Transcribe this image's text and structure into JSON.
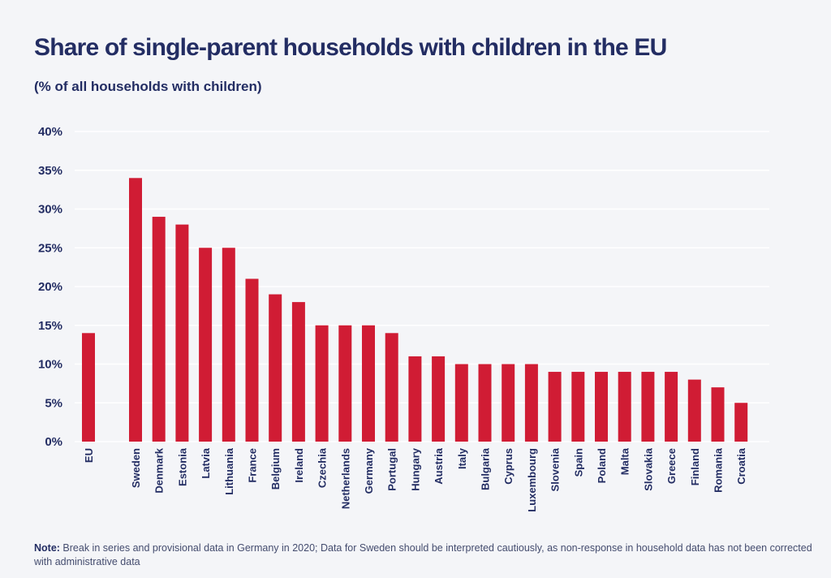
{
  "chart_data": {
    "type": "bar",
    "title": "Share of single-parent households with children in the EU",
    "subtitle": "(% of all households with children)",
    "xlabel": "",
    "ylabel": "",
    "ylim": [
      0,
      40
    ],
    "yticks": [
      "0%",
      "5%",
      "10%",
      "15%",
      "20%",
      "25%",
      "30%",
      "35%",
      "40%"
    ],
    "ytick_values": [
      0,
      5,
      10,
      15,
      20,
      25,
      30,
      35,
      40
    ],
    "grid": true,
    "categories": [
      "EU",
      "Sweden",
      "Denmark",
      "Estonia",
      "Latvia",
      "Lithuania",
      "France",
      "Belgium",
      "Ireland",
      "Czechia",
      "Netherlands",
      "Germany",
      "Portugal",
      "Hungary",
      "Austria",
      "Italy",
      "Bulgaria",
      "Cyprus",
      "Luxembourg",
      "Slovenia",
      "Spain",
      "Poland",
      "Malta",
      "Slovakia",
      "Greece",
      "Finland",
      "Romania",
      "Croatia"
    ],
    "values": [
      14,
      34,
      29,
      28,
      25,
      25,
      21,
      19,
      18,
      15,
      15,
      15,
      14,
      11,
      11,
      10,
      10,
      10,
      10,
      9,
      9,
      9,
      9,
      9,
      9,
      8,
      7,
      5
    ],
    "bar_color": "#d01c34"
  },
  "note": {
    "label": "Note:",
    "text": " Break in series and provisional data in Germany in 2020; Data for Sweden should be interpreted cautiously, as non-response in household data has not been corrected with administrative data"
  }
}
